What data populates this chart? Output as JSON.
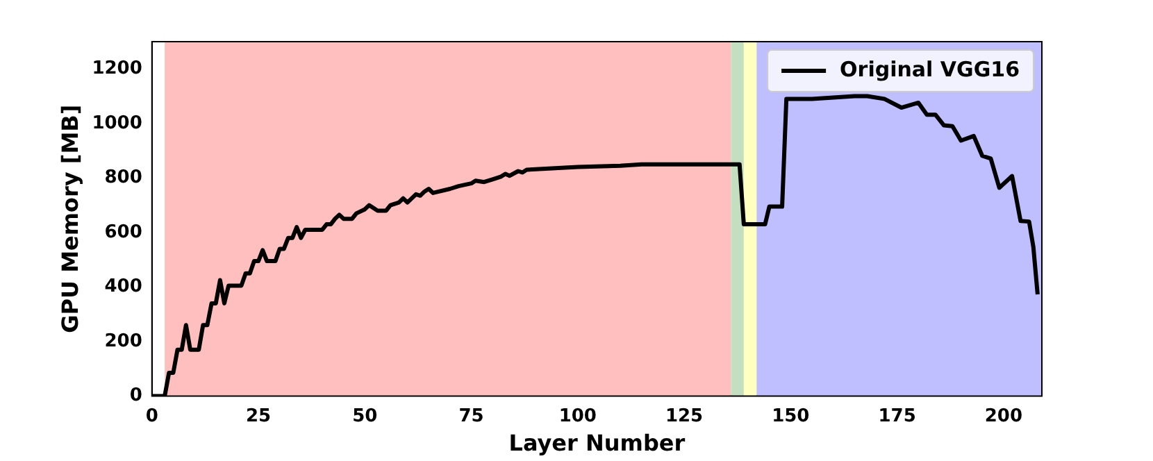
{
  "chart_data": {
    "type": "line",
    "xlabel": "Layer Number",
    "ylabel": "GPU Memory [MB]",
    "xlim": [
      0,
      209
    ],
    "xticks": [
      0,
      25,
      50,
      75,
      100,
      125,
      150,
      175,
      200
    ],
    "ylim": [
      0,
      1300
    ],
    "yticks": [
      0,
      200,
      400,
      600,
      800,
      1000,
      1200
    ],
    "legend": "top right",
    "grid": false,
    "marker": "none",
    "line_style": "solid",
    "bands": [
      {
        "axis": "x",
        "from": 3,
        "to": 136,
        "color": "#ffbfbf"
      },
      {
        "axis": "x",
        "from": 136,
        "to": 139,
        "color": "#c3dfbf"
      },
      {
        "axis": "x",
        "from": 139,
        "to": 142,
        "color": "#ffffbf"
      },
      {
        "axis": "x",
        "from": 142,
        "to": 209,
        "color": "#bfbfff"
      }
    ],
    "series": [
      {
        "name": "Original VGG16",
        "color": "#000000",
        "x": [
          0,
          3,
          4,
          5,
          6,
          7,
          8,
          9,
          11,
          12,
          13,
          14,
          15,
          16,
          17,
          18,
          21,
          22,
          23,
          24,
          25,
          26,
          27,
          29,
          30,
          31,
          32,
          33,
          34,
          35,
          36,
          40,
          41,
          42,
          43,
          44,
          45,
          47,
          48,
          50,
          51,
          53,
          55,
          56,
          58,
          59,
          60,
          62,
          63,
          64,
          65,
          66,
          70,
          72,
          75,
          76,
          78,
          80,
          82,
          83,
          84,
          86,
          87,
          88,
          100,
          110,
          115,
          138,
          139,
          144,
          145,
          146,
          148,
          149,
          155,
          160,
          165,
          168,
          172,
          176,
          180,
          182,
          184,
          186,
          188,
          190,
          193,
          195,
          197,
          199,
          202,
          204,
          206,
          207,
          208
        ],
        "values": [
          0,
          0,
          85,
          85,
          170,
          170,
          260,
          170,
          170,
          260,
          260,
          340,
          340,
          425,
          340,
          405,
          405,
          450,
          450,
          495,
          495,
          535,
          495,
          495,
          540,
          540,
          580,
          580,
          620,
          580,
          610,
          610,
          630,
          630,
          650,
          665,
          650,
          650,
          670,
          685,
          700,
          680,
          680,
          700,
          710,
          725,
          710,
          740,
          735,
          750,
          760,
          745,
          760,
          770,
          780,
          790,
          785,
          795,
          805,
          815,
          808,
          825,
          820,
          830,
          840,
          845,
          850,
          850,
          630,
          630,
          695,
          695,
          695,
          1090,
          1090,
          1095,
          1100,
          1100,
          1090,
          1058,
          1076,
          1032,
          1032,
          993,
          990,
          937,
          954,
          881,
          871,
          764,
          807,
          642,
          640,
          547,
          373
        ]
      }
    ]
  }
}
